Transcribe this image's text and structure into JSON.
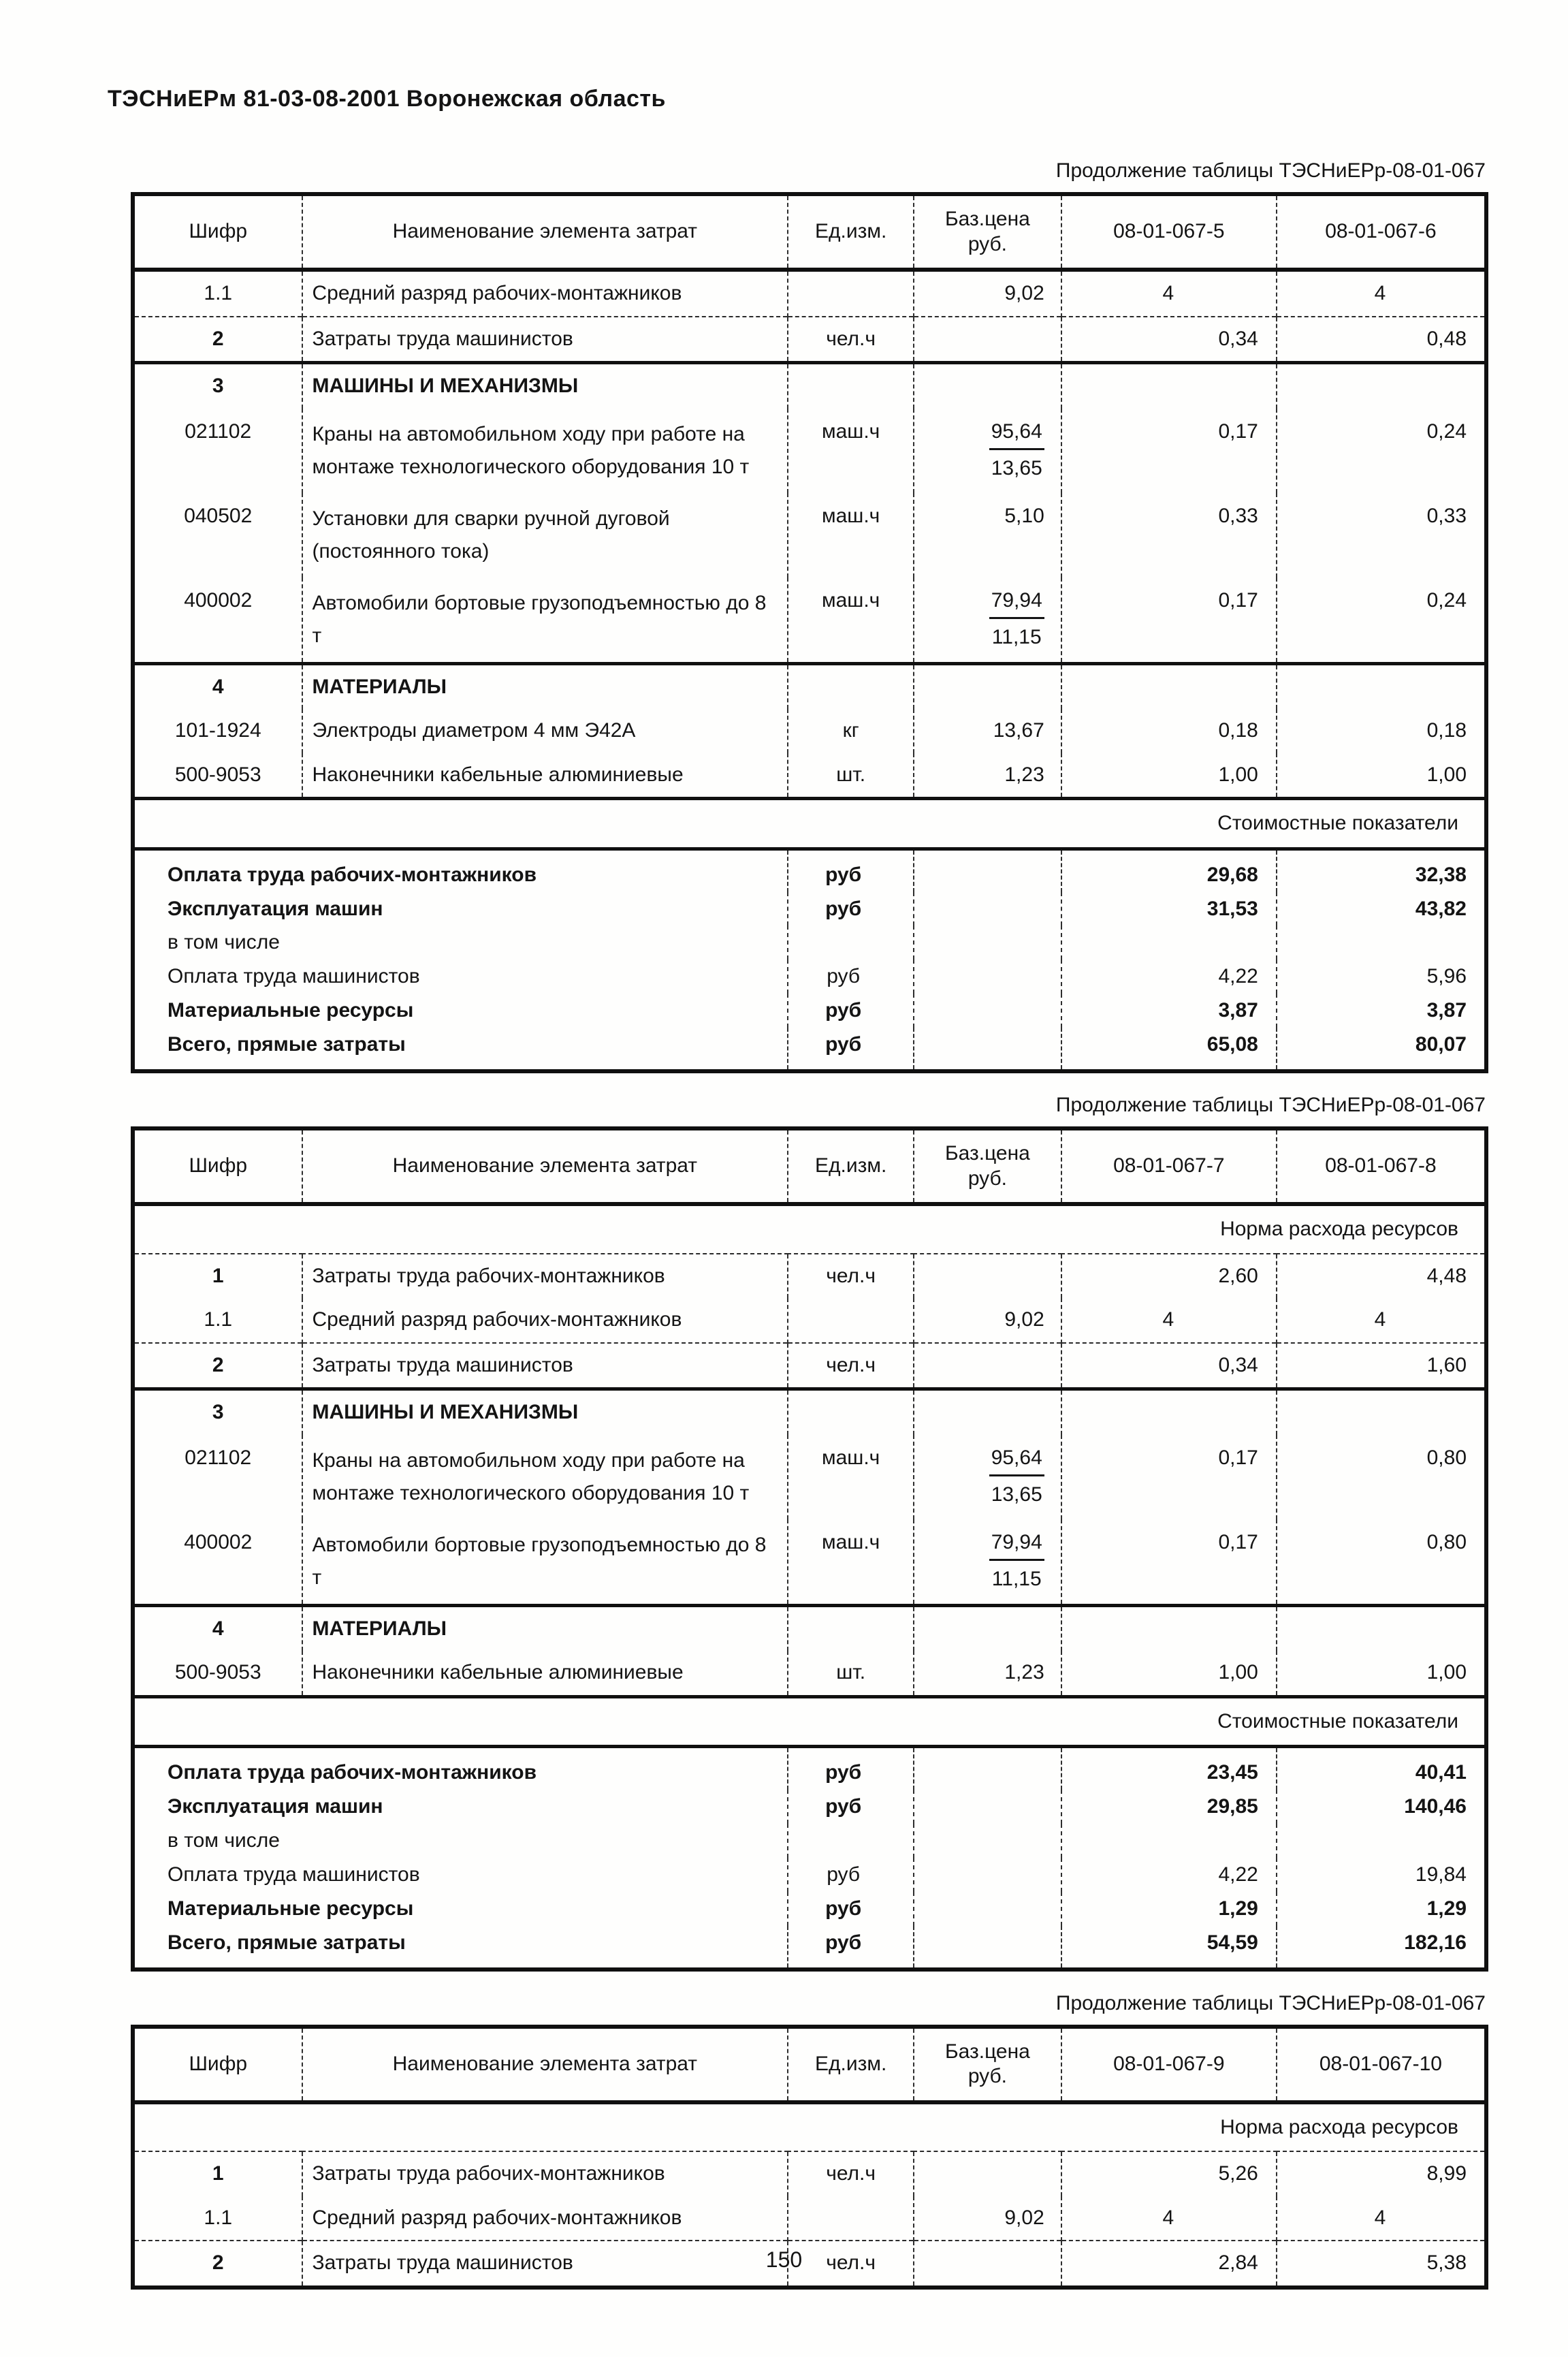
{
  "page": {
    "header": "ТЭСНиЕРм 81-03-08-2001 Воронежская область",
    "number": "150"
  },
  "tables": [
    {
      "caption": "Продолжение таблицы ТЭСНиЕРр-08-01-067",
      "headers": [
        "Шифр",
        "Наименование элемента затрат",
        "Ед.изм.",
        "Баз.цена\nруб.",
        "08-01-067-5",
        "08-01-067-6"
      ],
      "rows": [
        {
          "t": "data",
          "code": "1.1",
          "name": "Средний разряд рабочих-монтажников",
          "unit": "",
          "price": "9,02",
          "v1": "4",
          "v2": "4",
          "center": true
        },
        {
          "t": "data",
          "code": "2",
          "code_bold": true,
          "name": "Затраты труда машинистов",
          "unit": "чел.ч",
          "price": "",
          "v1": "0,34",
          "v2": "0,48",
          "sep": "thin"
        },
        {
          "t": "section",
          "code": "3",
          "label": "МАШИНЫ И МЕХАНИЗМЫ",
          "sep": "thick"
        },
        {
          "t": "data",
          "code": "021102",
          "name": "Краны на автомобильном ходу при работе на монтаже технологического оборудования 10 т",
          "unit": "маш.ч",
          "price_num": "95,64",
          "price_den": "13,65",
          "v1": "0,17",
          "v2": "0,24",
          "tall": true
        },
        {
          "t": "data",
          "code": "040502",
          "name": "Установки для сварки ручной дуговой (постоянного тока)",
          "unit": "маш.ч",
          "price": "5,10",
          "v1": "0,33",
          "v2": "0,33",
          "tall": true
        },
        {
          "t": "data",
          "code": "400002",
          "name": "Автомобили бортовые грузоподъемностью до 8 т",
          "unit": "маш.ч",
          "price_num": "79,94",
          "price_den": "11,15",
          "v1": "0,17",
          "v2": "0,24",
          "tall": true
        },
        {
          "t": "section",
          "code": "4",
          "label": "МАТЕРИАЛЫ",
          "sep": "thick"
        },
        {
          "t": "data",
          "code": "101-1924",
          "name": "Электроды диаметром 4 мм Э42А",
          "unit": "кг",
          "price": "13,67",
          "v1": "0,18",
          "v2": "0,18"
        },
        {
          "t": "data",
          "code": "500-9053",
          "name": "Наконечники кабельные алюминиевые",
          "unit": "шт.",
          "price": "1,23",
          "v1": "1,00",
          "v2": "1,00"
        },
        {
          "t": "band",
          "style": "cost",
          "label": "Стоимостные показатели"
        },
        {
          "t": "summary",
          "style": "first",
          "label": "Оплата труда рабочих-монтажников",
          "unit": "руб",
          "v1": "29,68",
          "v2": "32,38",
          "bold": true
        },
        {
          "t": "summary",
          "label": "Эксплуатация машин",
          "unit": "руб",
          "v1": "31,53",
          "v2": "43,82",
          "bold": true
        },
        {
          "t": "summary",
          "label": "в том числе",
          "unit": "",
          "v1": "",
          "v2": ""
        },
        {
          "t": "summary",
          "label": "Оплата труда машинистов",
          "unit": "руб",
          "v1": "4,22",
          "v2": "5,96"
        },
        {
          "t": "summary",
          "label": "Материальные ресурсы",
          "unit": "руб",
          "v1": "3,87",
          "v2": "3,87",
          "bold": true
        },
        {
          "t": "summary",
          "style": "last",
          "label": "Всего, прямые затраты",
          "unit": "руб",
          "v1": "65,08",
          "v2": "80,07",
          "bold": true
        }
      ]
    },
    {
      "caption": "Продолжение таблицы ТЭСНиЕРр-08-01-067",
      "headers": [
        "Шифр",
        "Наименование элемента затрат",
        "Ед.изм.",
        "Баз.цена\nруб.",
        "08-01-067-7",
        "08-01-067-8"
      ],
      "rows": [
        {
          "t": "band",
          "style": "norm",
          "label": "Норма расхода ресурсов"
        },
        {
          "t": "data",
          "code": "1",
          "code_bold": true,
          "name": "Затраты труда рабочих-монтажников",
          "unit": "чел.ч",
          "price": "",
          "v1": "2,60",
          "v2": "4,48"
        },
        {
          "t": "data",
          "code": "1.1",
          "name": "Средний разряд рабочих-монтажников",
          "unit": "",
          "price": "9,02",
          "v1": "4",
          "v2": "4",
          "center": true
        },
        {
          "t": "data",
          "code": "2",
          "code_bold": true,
          "name": "Затраты труда машинистов",
          "unit": "чел.ч",
          "price": "",
          "v1": "0,34",
          "v2": "1,60",
          "sep": "thin"
        },
        {
          "t": "section",
          "code": "3",
          "label": "МАШИНЫ И МЕХАНИЗМЫ",
          "sep": "thick"
        },
        {
          "t": "data",
          "code": "021102",
          "name": "Краны на автомобильном ходу при работе на монтаже технологического оборудования 10 т",
          "unit": "маш.ч",
          "price_num": "95,64",
          "price_den": "13,65",
          "v1": "0,17",
          "v2": "0,80",
          "tall": true
        },
        {
          "t": "data",
          "code": "400002",
          "name": "Автомобили бортовые грузоподъемностью до 8 т",
          "unit": "маш.ч",
          "price_num": "79,94",
          "price_den": "11,15",
          "v1": "0,17",
          "v2": "0,80",
          "tall": true
        },
        {
          "t": "section",
          "code": "4",
          "label": "МАТЕРИАЛЫ",
          "sep": "thick"
        },
        {
          "t": "data",
          "code": "500-9053",
          "name": "Наконечники кабельные алюминиевые",
          "unit": "шт.",
          "price": "1,23",
          "v1": "1,00",
          "v2": "1,00"
        },
        {
          "t": "band",
          "style": "cost",
          "label": "Стоимостные показатели"
        },
        {
          "t": "summary",
          "style": "first",
          "label": "Оплата труда рабочих-монтажников",
          "unit": "руб",
          "v1": "23,45",
          "v2": "40,41",
          "bold": true
        },
        {
          "t": "summary",
          "label": "Эксплуатация машин",
          "unit": "руб",
          "v1": "29,85",
          "v2": "140,46",
          "bold": true
        },
        {
          "t": "summary",
          "label": "в том числе",
          "unit": "",
          "v1": "",
          "v2": ""
        },
        {
          "t": "summary",
          "label": "Оплата труда машинистов",
          "unit": "руб",
          "v1": "4,22",
          "v2": "19,84"
        },
        {
          "t": "summary",
          "label": "Материальные ресурсы",
          "unit": "руб",
          "v1": "1,29",
          "v2": "1,29",
          "bold": true
        },
        {
          "t": "summary",
          "style": "last",
          "label": "Всего, прямые затраты",
          "unit": "руб",
          "v1": "54,59",
          "v2": "182,16",
          "bold": true
        }
      ]
    },
    {
      "caption": "Продолжение таблицы ТЭСНиЕРр-08-01-067",
      "headers": [
        "Шифр",
        "Наименование элемента затрат",
        "Ед.изм.",
        "Баз.цена\nруб.",
        "08-01-067-9",
        "08-01-067-10"
      ],
      "rows": [
        {
          "t": "band",
          "style": "norm",
          "label": "Норма расхода ресурсов"
        },
        {
          "t": "data",
          "code": "1",
          "code_bold": true,
          "name": "Затраты труда рабочих-монтажников",
          "unit": "чел.ч",
          "price": "",
          "v1": "5,26",
          "v2": "8,99"
        },
        {
          "t": "data",
          "code": "1.1",
          "name": "Средний разряд рабочих-монтажников",
          "unit": "",
          "price": "9,02",
          "v1": "4",
          "v2": "4",
          "center": true
        },
        {
          "t": "data",
          "code": "2",
          "code_bold": true,
          "name": "Затраты труда машинистов",
          "unit": "чел.ч",
          "price": "",
          "v1": "2,84",
          "v2": "5,38",
          "sep": "thin"
        }
      ]
    }
  ]
}
